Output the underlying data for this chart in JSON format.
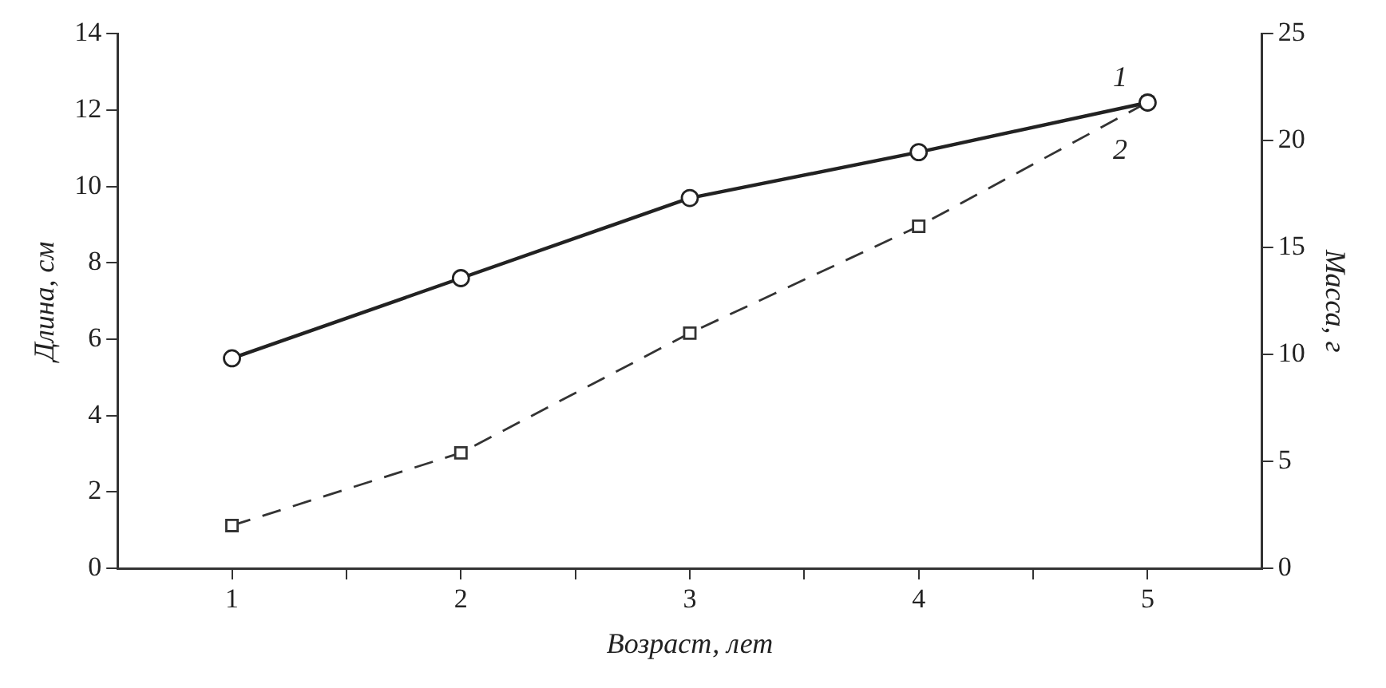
{
  "chart_data": {
    "type": "line",
    "xlabel": "Возраст, лет",
    "ylabel": "Длина, см",
    "y2label": "Масса, г",
    "x": [
      1,
      2,
      3,
      4,
      5
    ],
    "series": [
      {
        "name": "1",
        "color": "#222222",
        "values": [
          5.5,
          7.6,
          9.7,
          10.9,
          12.2
        ],
        "marker": "circle",
        "line_style": "solid"
      },
      {
        "name": "2",
        "color": "#333333",
        "values": [
          2.0,
          5.4,
          11.0,
          16.0,
          21.8
        ],
        "axis": "y2",
        "marker": "square",
        "line_style": "dashed"
      }
    ],
    "xlim": [
      0.5,
      5.5
    ],
    "xticks": [
      1,
      {
        "value": 1.5,
        "label": null
      },
      2,
      {
        "value": 2.5,
        "label": null
      },
      3,
      {
        "value": 3.5,
        "label": null
      },
      4,
      {
        "value": 4.5,
        "label": null
      },
      5
    ],
    "ylim": [
      0,
      14
    ],
    "yticks": [
      0,
      2,
      4,
      6,
      8,
      10,
      12,
      14
    ],
    "y2lim": [
      0,
      25
    ],
    "y2ticks": [
      0,
      5,
      10,
      15,
      20,
      25
    ],
    "grid": false,
    "legend": false
  }
}
